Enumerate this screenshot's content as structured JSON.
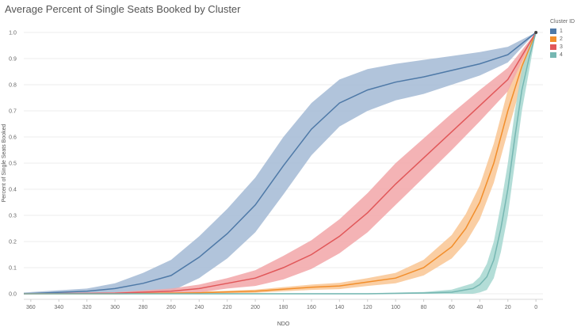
{
  "chart_data": {
    "type": "line",
    "title": "Average Percent of Single Seats Booked by Cluster",
    "xlabel": "NDO",
    "ylabel": "Percent of Single Seats Booked",
    "xlim": [
      365,
      -5
    ],
    "ylim": [
      0,
      1.0
    ],
    "x_reversed": true,
    "grid": "horizontal",
    "legend_placement": "top-right",
    "legend_title": "Cluster ID",
    "x_ticks": [
      "360",
      "340",
      "320",
      "300",
      "280",
      "260",
      "240",
      "220",
      "200",
      "180",
      "160",
      "140",
      "120",
      "100",
      "80",
      "60",
      "40",
      "20",
      "0"
    ],
    "y_ticks": [
      "0.0",
      "0.1",
      "0.2",
      "0.3",
      "0.4",
      "0.5",
      "0.6",
      "0.7",
      "0.8",
      "0.9",
      "1.0"
    ],
    "series": [
      {
        "name": "1",
        "color": "#4e79a7",
        "band_color": "#a6bcd6",
        "x": [
          365,
          320,
          300,
          280,
          260,
          240,
          220,
          200,
          180,
          160,
          140,
          120,
          100,
          80,
          60,
          40,
          20,
          0
        ],
        "y": [
          0.0,
          0.01,
          0.02,
          0.04,
          0.07,
          0.14,
          0.23,
          0.34,
          0.49,
          0.63,
          0.73,
          0.78,
          0.81,
          0.83,
          0.855,
          0.88,
          0.915,
          1.0
        ],
        "band": [
          0.005,
          0.01,
          0.02,
          0.04,
          0.06,
          0.08,
          0.095,
          0.105,
          0.11,
          0.1,
          0.09,
          0.08,
          0.07,
          0.065,
          0.055,
          0.045,
          0.03,
          0.0
        ]
      },
      {
        "name": "2",
        "color": "#f28e2b",
        "band_color": "#f9c796",
        "x": [
          365,
          300,
          240,
          200,
          160,
          140,
          120,
          100,
          80,
          60,
          50,
          40,
          30,
          20,
          10,
          0
        ],
        "y": [
          0.0,
          0.0,
          0.004,
          0.01,
          0.025,
          0.03,
          0.045,
          0.06,
          0.1,
          0.18,
          0.25,
          0.35,
          0.5,
          0.7,
          0.87,
          1.0
        ],
        "band": [
          0.002,
          0.002,
          0.004,
          0.006,
          0.01,
          0.012,
          0.015,
          0.02,
          0.03,
          0.045,
          0.055,
          0.065,
          0.075,
          0.08,
          0.06,
          0.0
        ]
      },
      {
        "name": "3",
        "color": "#e15759",
        "band_color": "#f2a9ab",
        "x": [
          365,
          300,
          260,
          240,
          220,
          200,
          180,
          160,
          140,
          120,
          100,
          80,
          60,
          40,
          20,
          0
        ],
        "y": [
          0.0,
          0.002,
          0.01,
          0.02,
          0.04,
          0.06,
          0.1,
          0.15,
          0.22,
          0.31,
          0.42,
          0.52,
          0.62,
          0.72,
          0.82,
          1.0
        ],
        "band": [
          0.002,
          0.004,
          0.01,
          0.015,
          0.02,
          0.03,
          0.045,
          0.055,
          0.065,
          0.075,
          0.08,
          0.075,
          0.07,
          0.06,
          0.045,
          0.0
        ]
      },
      {
        "name": "4",
        "color": "#76b7b2",
        "band_color": "#a8d8d2",
        "x": [
          365,
          120,
          80,
          60,
          45,
          40,
          35,
          30,
          25,
          20,
          15,
          10,
          5,
          0
        ],
        "y": [
          0.0,
          0.0,
          0.003,
          0.006,
          0.02,
          0.035,
          0.065,
          0.13,
          0.25,
          0.4,
          0.6,
          0.78,
          0.9,
          1.0
        ],
        "band": [
          0.002,
          0.002,
          0.004,
          0.01,
          0.02,
          0.03,
          0.05,
          0.07,
          0.09,
          0.1,
          0.1,
          0.08,
          0.05,
          0.0
        ]
      }
    ]
  }
}
